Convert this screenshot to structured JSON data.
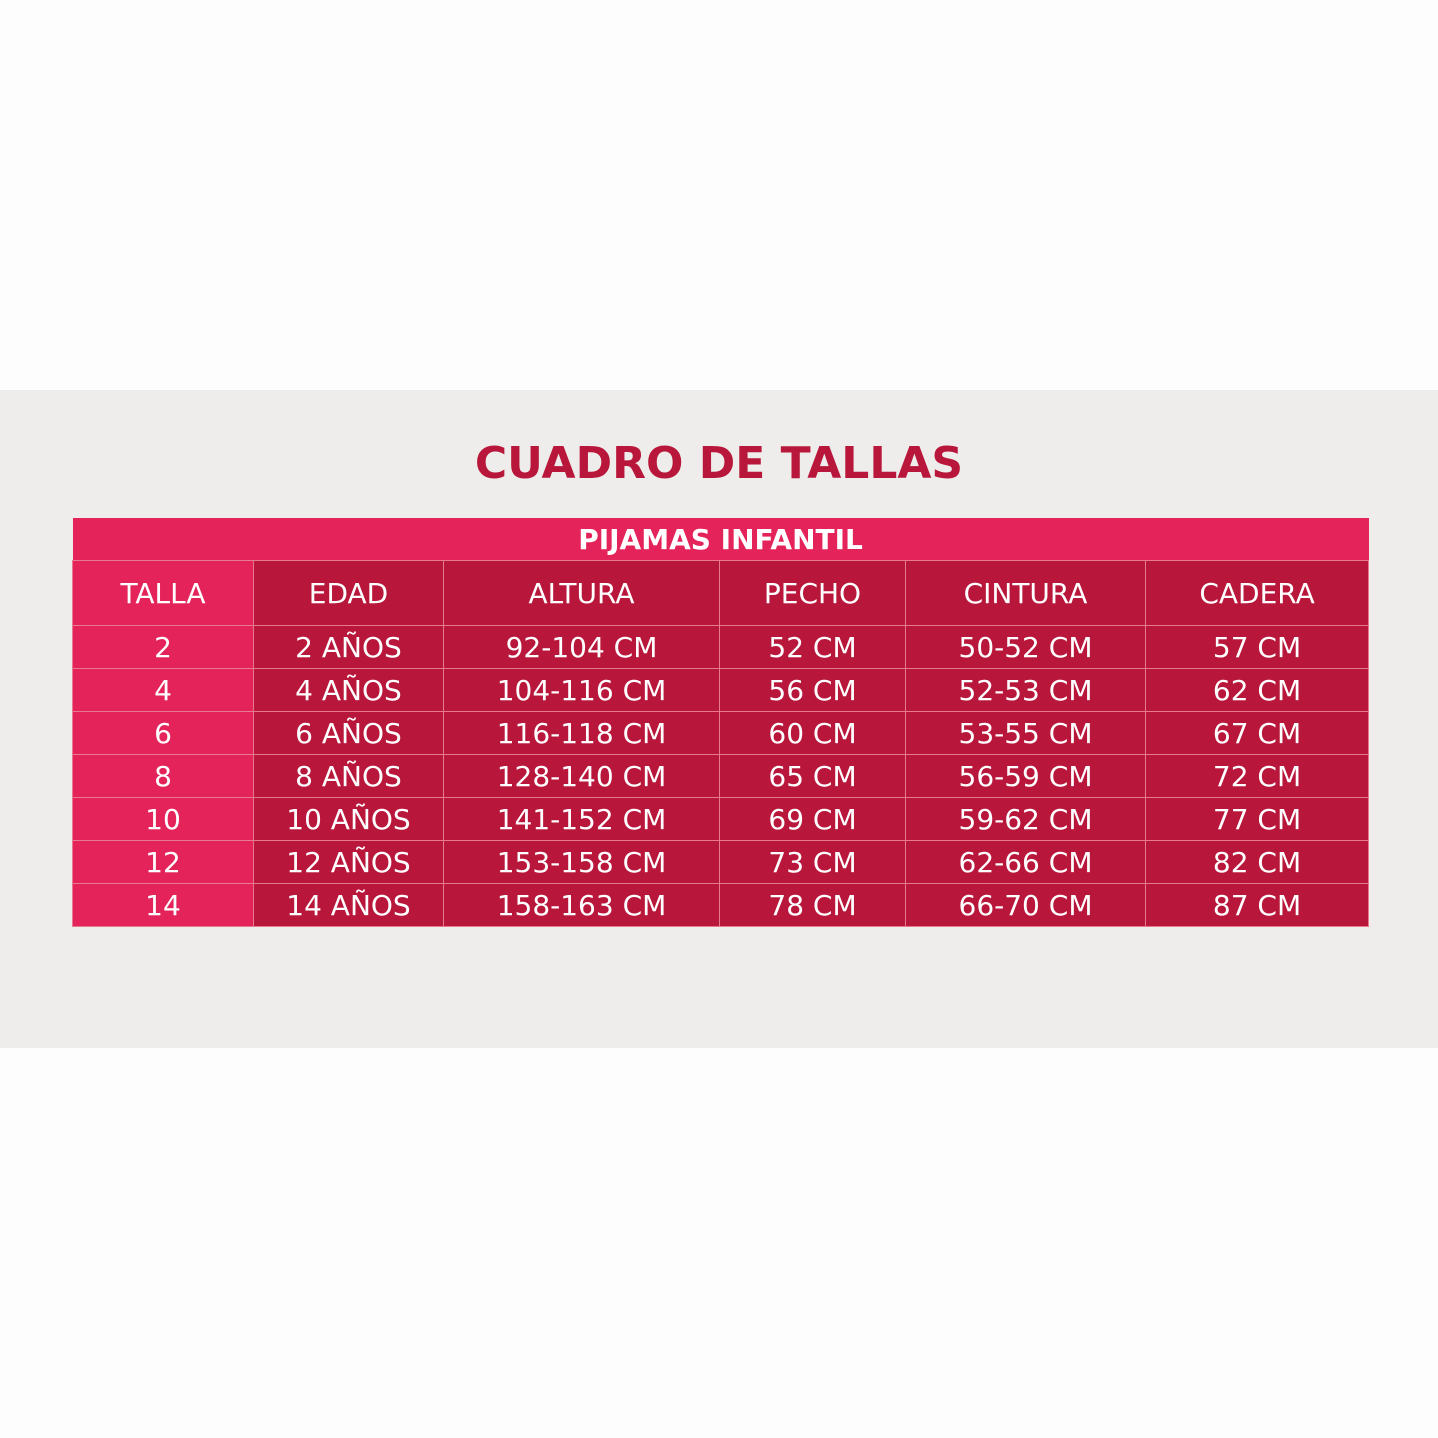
{
  "title": "CUADRO DE TALLAS",
  "table": {
    "caption": "PIJAMAS INFANTIL",
    "columns": [
      "TALLA",
      "EDAD",
      "ALTURA",
      "PECHO",
      "CINTURA",
      "CADERA"
    ],
    "rows": [
      [
        "2",
        "2 AÑOS",
        "92-104 CM",
        "52 CM",
        "50-52 CM",
        "57 CM"
      ],
      [
        "4",
        "4 AÑOS",
        "104-116 CM",
        "56 CM",
        "52-53 CM",
        "62 CM"
      ],
      [
        "6",
        "6 AÑOS",
        "116-118 CM",
        "60 CM",
        "53-55 CM",
        "67 CM"
      ],
      [
        "8",
        "8 AÑOS",
        "128-140 CM",
        "65 CM",
        "56-59 CM",
        "72 CM"
      ],
      [
        "10",
        "10 AÑOS",
        "141-152 CM",
        "69 CM",
        "59-62 CM",
        "77 CM"
      ],
      [
        "12",
        "12 AÑOS",
        "153-158 CM",
        "73 CM",
        "62-66 CM",
        "82 CM"
      ],
      [
        "14",
        "14 AÑOS",
        "158-163 CM",
        "78 CM",
        "66-70 CM",
        "87 CM"
      ]
    ]
  }
}
